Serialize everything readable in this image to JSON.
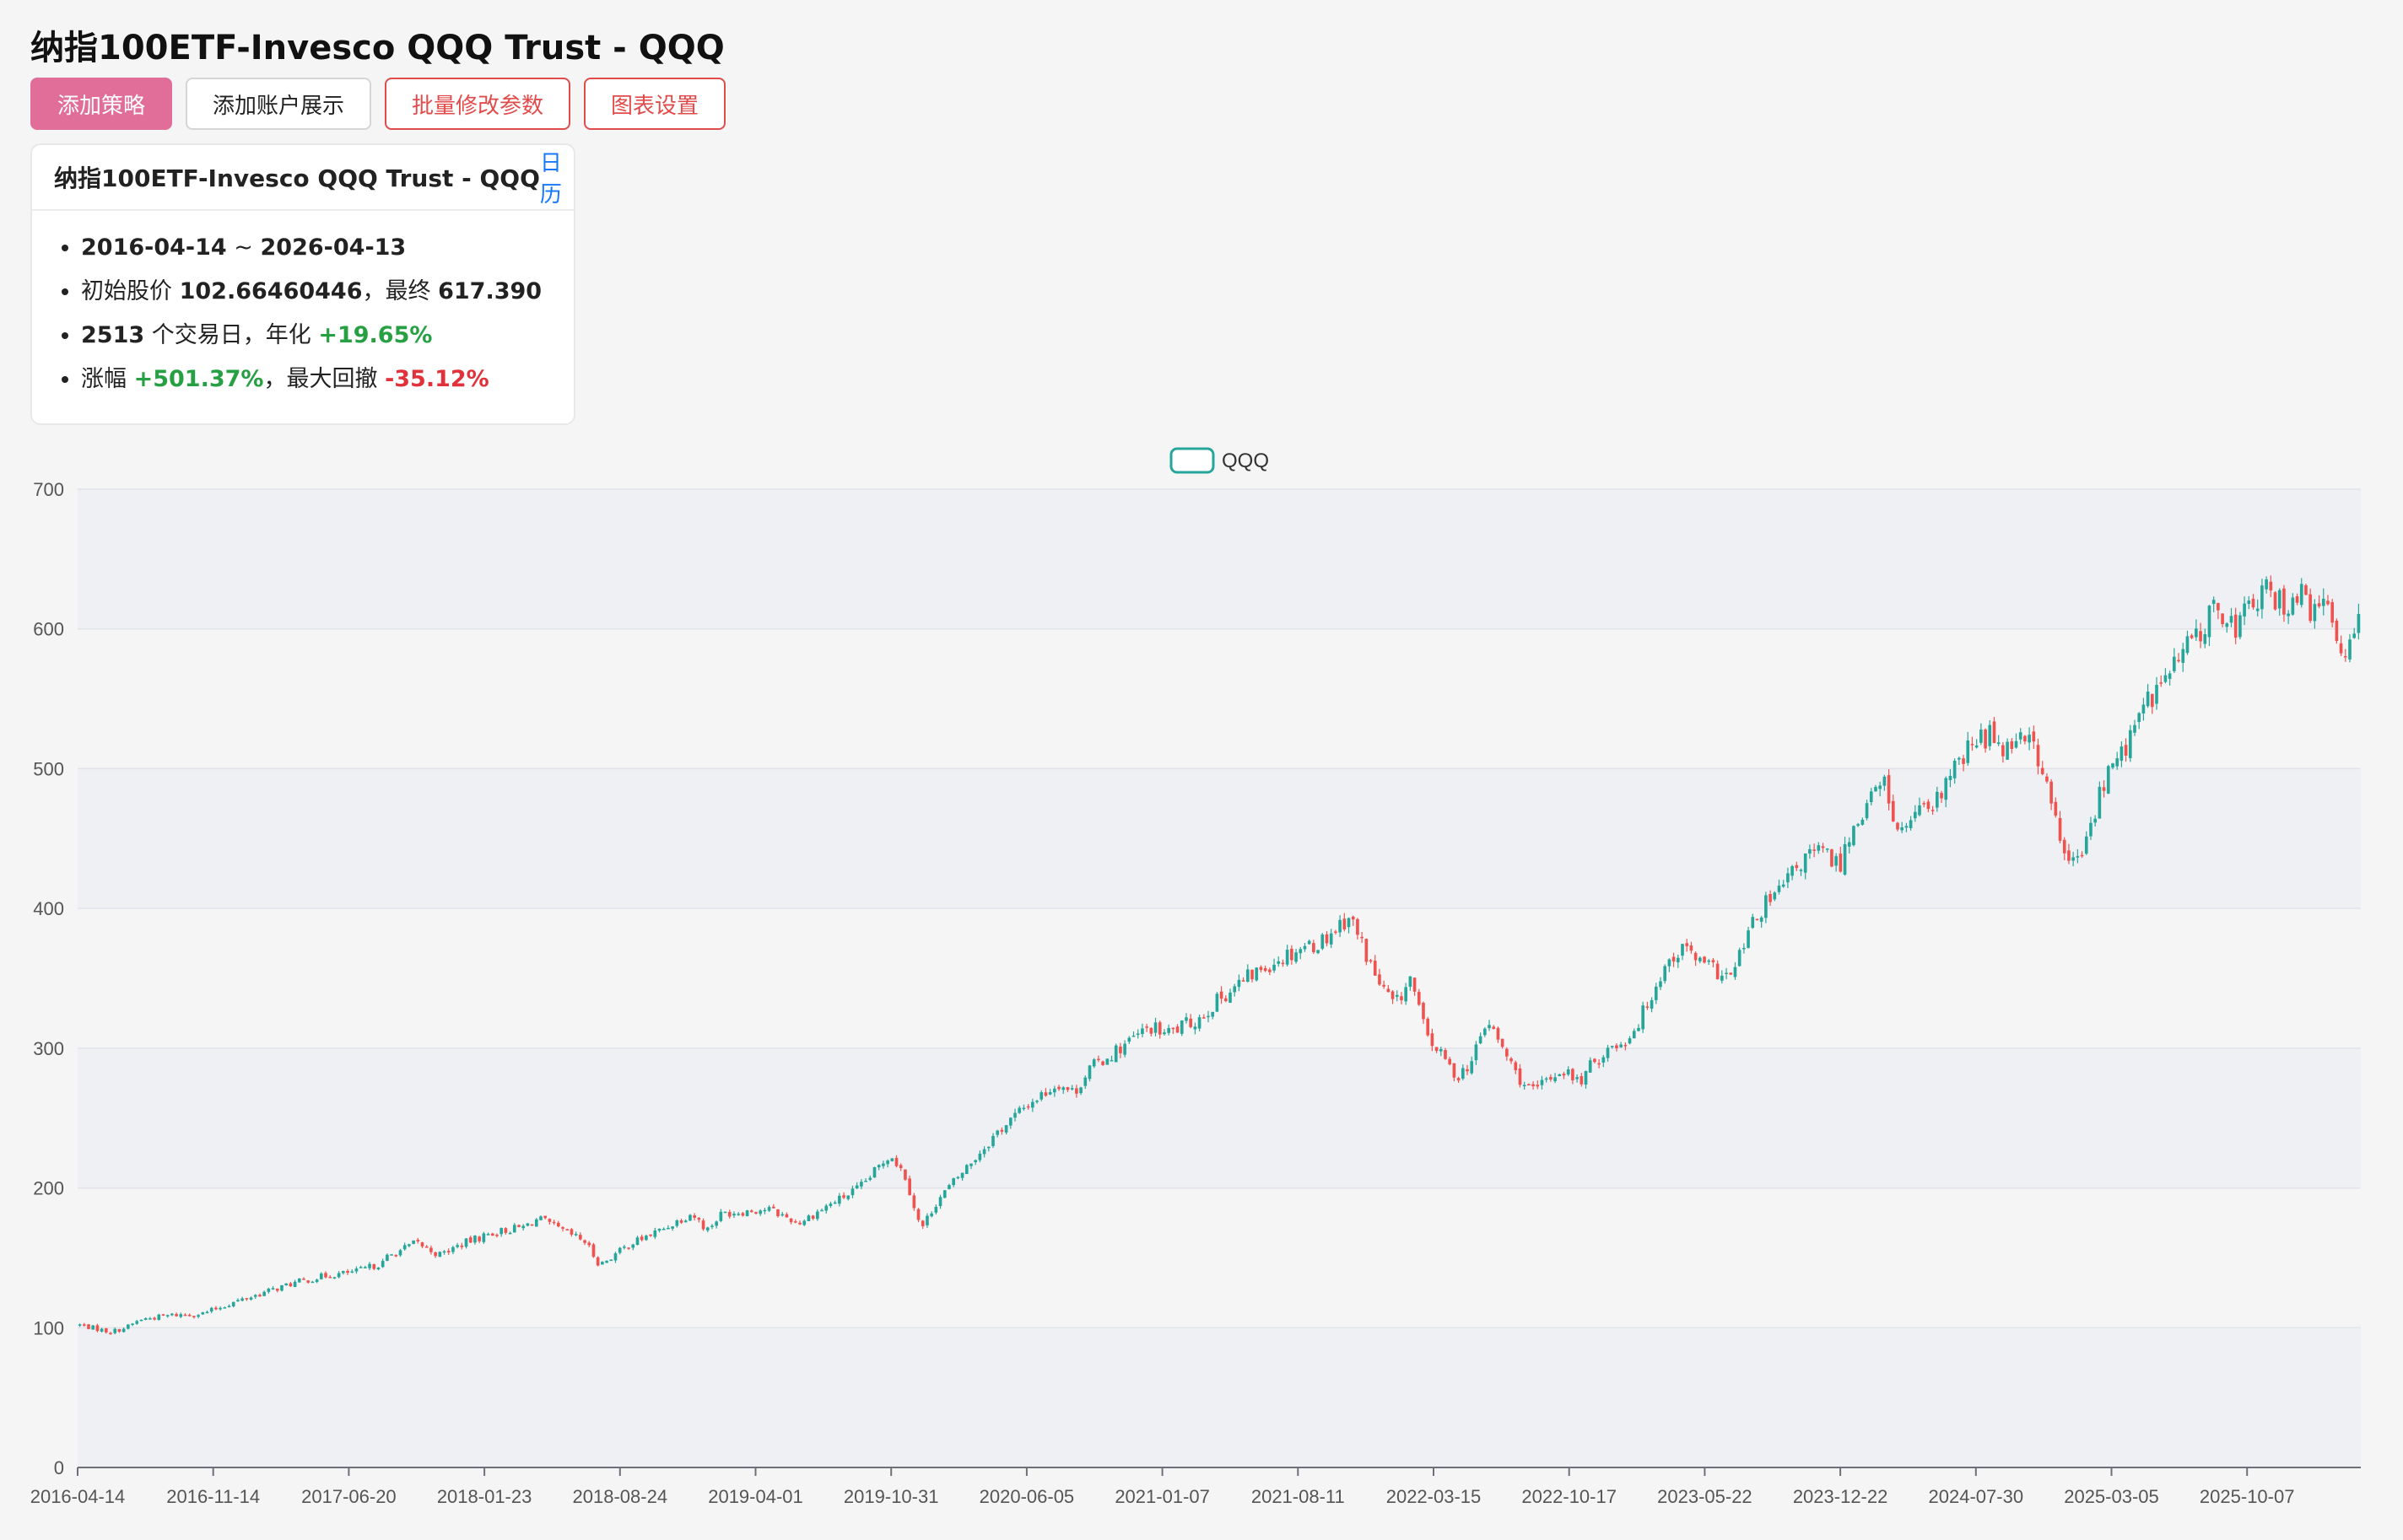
{
  "title": "纳指100ETF-Invesco QQQ Trust - QQQ",
  "toolbar": {
    "add_strategy": "添加策略",
    "add_account": "添加账户展示",
    "batch_edit": "批量修改参数",
    "chart_settings": "图表设置"
  },
  "info_card": {
    "title": "纳指100ETF-Invesco QQQ Trust - QQQ",
    "calendar_link": "日历",
    "start_date": "2016-04-14",
    "range_sep": " ~ ",
    "end_date": "2026-04-13",
    "initial_label": "初始股价 ",
    "initial_price": "102.66460446",
    "final_label": "，最终 ",
    "final_price": "617.390",
    "trading_days": "2513",
    "trading_days_label": " 个交易日，年化 ",
    "annualized": "+19.65%",
    "change_label": "涨幅 ",
    "change": "+501.37%",
    "drawdown_label": "，最大回撤 ",
    "max_drawdown": "-35.12%"
  },
  "colors": {
    "up": "#26a69a",
    "down": "#ef5350",
    "accent": "#e06e98",
    "danger": "#e24b4b",
    "link": "#1677ff",
    "positive": "#27a043",
    "negative": "#e0323b"
  },
  "chart_data": {
    "type": "candlestick",
    "legend": [
      "QQQ"
    ],
    "legend_position": "top-center",
    "ylim": [
      0,
      700
    ],
    "y_ticks": [
      0,
      100,
      200,
      300,
      400,
      500,
      600,
      700
    ],
    "grid": "horizontal, alternating bands",
    "x_tick_labels": [
      "2016-04-14",
      "2016-11-14",
      "2017-06-20",
      "2018-01-23",
      "2018-08-24",
      "2019-04-01",
      "2019-10-31",
      "2020-06-05",
      "2021-01-07",
      "2021-08-11",
      "2022-03-15",
      "2022-10-17",
      "2023-05-22",
      "2023-12-22",
      "2024-07-30",
      "2025-03-05",
      "2025-10-07"
    ],
    "series": [
      {
        "name": "QQQ",
        "close": [
          [
            0,
            102
          ],
          [
            0.02,
            97
          ],
          [
            0.03,
            100
          ],
          [
            0.04,
            106
          ],
          [
            0.06,
            109
          ],
          [
            0.08,
            110
          ],
          [
            0.1,
            118
          ],
          [
            0.12,
            125
          ],
          [
            0.14,
            132
          ],
          [
            0.16,
            137
          ],
          [
            0.18,
            140
          ],
          [
            0.2,
            147
          ],
          [
            0.2,
            150
          ],
          [
            0.22,
            161
          ],
          [
            0.235,
            152
          ],
          [
            0.25,
            160
          ],
          [
            0.27,
            168
          ],
          [
            0.29,
            172
          ],
          [
            0.3,
            178
          ],
          [
            0.31,
            172
          ],
          [
            0.33,
            162
          ],
          [
            0.34,
            145
          ],
          [
            0.36,
            160
          ],
          [
            0.38,
            170
          ],
          [
            0.4,
            182
          ],
          [
            0.41,
            170
          ],
          [
            0.42,
            182
          ],
          [
            0.45,
            185
          ],
          [
            0.47,
            175
          ],
          [
            0.49,
            188
          ],
          [
            0.51,
            200
          ],
          [
            0.52,
            212
          ],
          [
            0.53,
            225
          ],
          [
            0.54,
            208
          ],
          [
            0.55,
            170
          ],
          [
            0.56,
            190
          ],
          [
            0.58,
            215
          ],
          [
            0.6,
            240
          ],
          [
            0.62,
            260
          ],
          [
            0.64,
            275
          ],
          [
            0.65,
            268
          ],
          [
            0.66,
            285
          ],
          [
            0.68,
            300
          ],
          [
            0.7,
            315
          ],
          [
            0.71,
            310
          ],
          [
            0.73,
            320
          ],
          [
            0.75,
            340
          ],
          [
            0.77,
            355
          ],
          [
            0.78,
            362
          ],
          [
            0.8,
            373
          ],
          [
            0.81,
            375
          ],
          [
            0.83,
            395
          ],
          [
            0.84,
            370
          ],
          [
            0.85,
            345
          ],
          [
            0.86,
            330
          ],
          [
            0.87,
            350
          ],
          [
            0.88,
            310
          ],
          [
            0.89,
            295
          ],
          [
            0.9,
            280
          ],
          [
            0.91,
            290
          ],
          [
            0.92,
            320
          ],
          [
            0.93,
            300
          ],
          [
            0.94,
            280
          ],
          [
            0.95,
            268
          ],
          [
            0.96,
            278
          ],
          [
            0.97,
            285
          ],
          [
            0.98,
            275
          ],
          [
            0.99,
            290
          ],
          [
            1.0,
            300
          ],
          [
            1.01,
            305
          ],
          [
            1.02,
            320
          ],
          [
            1.03,
            345
          ],
          [
            1.04,
            365
          ],
          [
            1.05,
            372
          ],
          [
            1.06,
            360
          ],
          [
            1.07,
            355
          ],
          [
            1.08,
            350
          ],
          [
            1.09,
            380
          ],
          [
            1.1,
            400
          ],
          [
            1.11,
            410
          ],
          [
            1.12,
            425
          ],
          [
            1.13,
            438
          ],
          [
            1.14,
            440
          ],
          [
            1.15,
            430
          ],
          [
            1.16,
            460
          ],
          [
            1.17,
            478
          ],
          [
            1.18,
            490
          ],
          [
            1.19,
            450
          ],
          [
            1.2,
            470
          ],
          [
            1.21,
            465
          ],
          [
            1.22,
            490
          ],
          [
            1.23,
            505
          ],
          [
            1.24,
            520
          ],
          [
            1.25,
            525
          ],
          [
            1.26,
            515
          ],
          [
            1.27,
            530
          ],
          [
            1.28,
            510
          ],
          [
            1.29,
            470
          ],
          [
            1.3,
            430
          ],
          [
            1.31,
            440
          ],
          [
            1.32,
            480
          ],
          [
            1.33,
            505
          ],
          [
            1.34,
            520
          ],
          [
            1.35,
            545
          ],
          [
            1.36,
            560
          ],
          [
            1.37,
            575
          ],
          [
            1.38,
            590
          ],
          [
            1.39,
            605
          ],
          [
            1.4,
            615
          ],
          [
            1.41,
            600
          ],
          [
            1.42,
            620
          ],
          [
            1.43,
            625
          ],
          [
            1.44,
            618
          ],
          [
            1.45,
            625
          ],
          [
            1.46,
            612
          ],
          [
            1.47,
            615
          ],
          [
            1.48,
            580
          ],
          [
            1.49,
            617
          ]
        ],
        "start": "2016-04-14",
        "end": "2026-04-13",
        "initial": 102.66460446,
        "final": 617.39
      }
    ]
  }
}
